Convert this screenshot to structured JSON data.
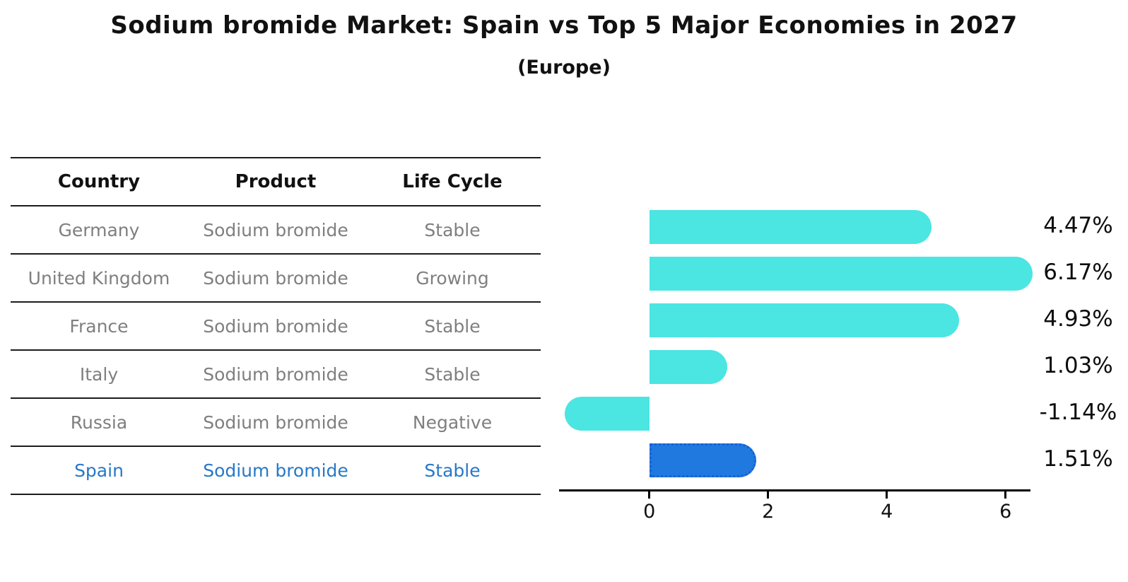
{
  "title": "Sodium bromide Market: Spain vs Top 5 Major Economies in 2027",
  "subtitle": "(Europe)",
  "table": {
    "headers": [
      "Country",
      "Product",
      "Life Cycle"
    ],
    "rows": [
      {
        "country": "Germany",
        "product": "Sodium bromide",
        "life_cycle": "Stable",
        "highlight": false
      },
      {
        "country": "United Kingdom",
        "product": "Sodium bromide",
        "life_cycle": "Growing",
        "highlight": false
      },
      {
        "country": "France",
        "product": "Sodium bromide",
        "life_cycle": "Stable",
        "highlight": false
      },
      {
        "country": "Italy",
        "product": "Sodium bromide",
        "life_cycle": "Stable",
        "highlight": false
      },
      {
        "country": "Russia",
        "product": "Sodium bromide",
        "life_cycle": "Negative",
        "highlight": false
      },
      {
        "country": "Spain",
        "product": "Sodium bromide",
        "life_cycle": "Stable",
        "highlight": true
      }
    ]
  },
  "chart_data": {
    "type": "bar",
    "orientation": "horizontal",
    "title": "Sodium bromide Market: Spain vs Top 5 Major Economies in 2027 (Europe)",
    "categories": [
      "Germany",
      "United Kingdom",
      "France",
      "Italy",
      "Russia",
      "Spain"
    ],
    "values": [
      4.47,
      6.17,
      4.93,
      1.03,
      -1.14,
      1.51
    ],
    "value_labels": [
      "4.47%",
      "6.17%",
      "4.93%",
      "1.03%",
      "-1.14%",
      "1.51%"
    ],
    "x_ticks": [
      0,
      2,
      4,
      6
    ],
    "xlim": [
      -1.52,
      6.42
    ],
    "grid": false,
    "legend": false,
    "bar_color": "#4BE5E2",
    "highlight_index": 5,
    "highlight_color": "#2079DF",
    "highlight_border_color": "#1a5fd6",
    "highlight_border_style": "dotted"
  }
}
